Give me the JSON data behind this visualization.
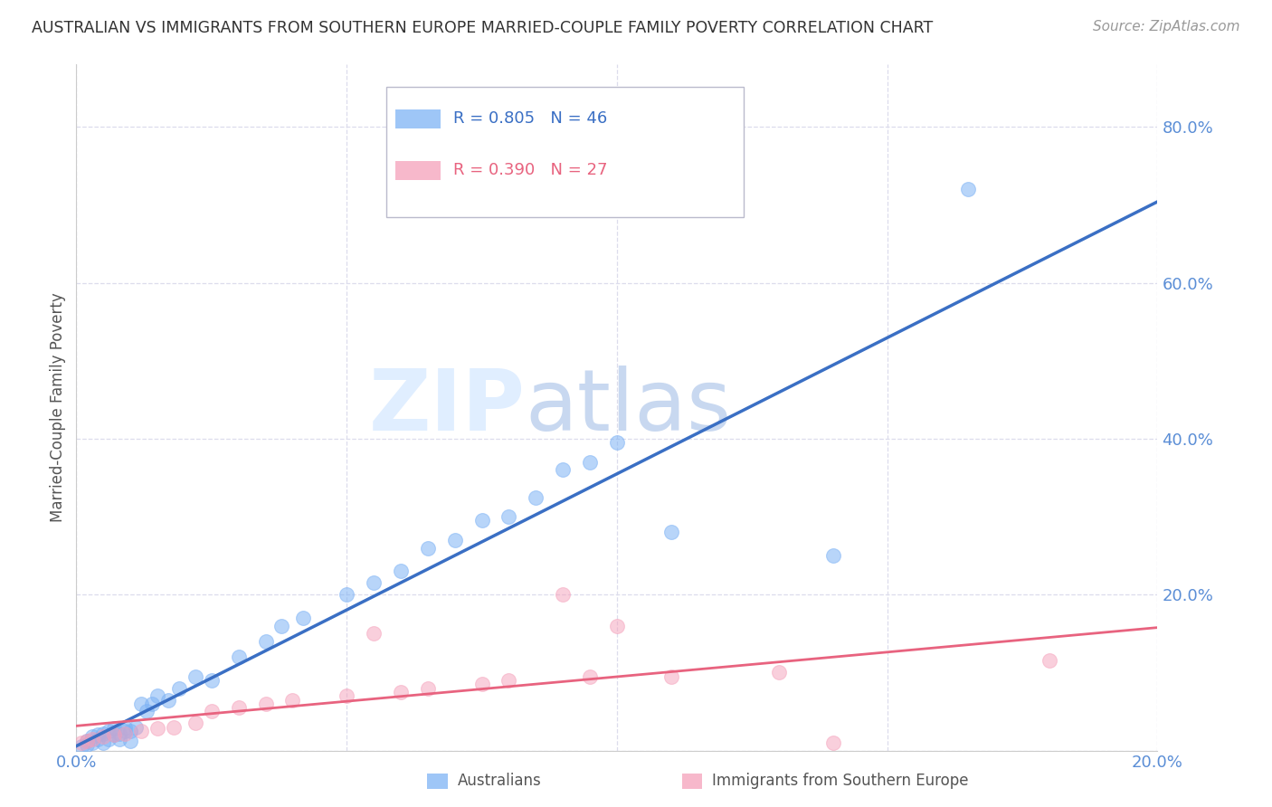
{
  "title": "AUSTRALIAN VS IMMIGRANTS FROM SOUTHERN EUROPE MARRIED-COUPLE FAMILY POVERTY CORRELATION CHART",
  "source": "Source: ZipAtlas.com",
  "ylabel": "Married-Couple Family Poverty",
  "watermark_zip": "ZIP",
  "watermark_atlas": "atlas",
  "xlim": [
    0.0,
    0.2
  ],
  "ylim": [
    0.0,
    0.88
  ],
  "yticks": [
    0.0,
    0.2,
    0.4,
    0.6,
    0.8
  ],
  "xticks": [
    0.0,
    0.05,
    0.1,
    0.15,
    0.2
  ],
  "xtick_labels": [
    "0.0%",
    "",
    "",
    "",
    "20.0%"
  ],
  "ytick_labels": [
    "",
    "20.0%",
    "40.0%",
    "60.0%",
    "80.0%"
  ],
  "blue_R": 0.805,
  "blue_N": 46,
  "pink_R": 0.39,
  "pink_N": 27,
  "blue_color": "#7EB3F5",
  "pink_color": "#F5A0BA",
  "blue_line_color": "#3A6FC4",
  "pink_line_color": "#E8637F",
  "blue_text_color": "#3A6FC4",
  "pink_text_color": "#E8637F",
  "legend_label_blue": "Australians",
  "legend_label_pink": "Immigrants from Southern Europe",
  "blue_x": [
    0.001,
    0.002,
    0.002,
    0.003,
    0.003,
    0.004,
    0.004,
    0.005,
    0.005,
    0.006,
    0.006,
    0.007,
    0.007,
    0.008,
    0.008,
    0.009,
    0.009,
    0.01,
    0.01,
    0.011,
    0.012,
    0.013,
    0.014,
    0.015,
    0.017,
    0.019,
    0.022,
    0.025,
    0.03,
    0.035,
    0.038,
    0.042,
    0.05,
    0.055,
    0.06,
    0.065,
    0.07,
    0.075,
    0.08,
    0.085,
    0.09,
    0.095,
    0.1,
    0.11,
    0.14,
    0.165
  ],
  "blue_y": [
    0.005,
    0.008,
    0.012,
    0.01,
    0.018,
    0.015,
    0.02,
    0.01,
    0.022,
    0.015,
    0.025,
    0.02,
    0.028,
    0.015,
    0.022,
    0.025,
    0.03,
    0.012,
    0.025,
    0.03,
    0.06,
    0.05,
    0.06,
    0.07,
    0.065,
    0.08,
    0.095,
    0.09,
    0.12,
    0.14,
    0.16,
    0.17,
    0.2,
    0.215,
    0.23,
    0.26,
    0.27,
    0.295,
    0.3,
    0.325,
    0.36,
    0.37,
    0.395,
    0.28,
    0.25,
    0.72
  ],
  "pink_x": [
    0.001,
    0.002,
    0.003,
    0.005,
    0.007,
    0.009,
    0.012,
    0.015,
    0.018,
    0.022,
    0.025,
    0.03,
    0.035,
    0.04,
    0.05,
    0.055,
    0.06,
    0.065,
    0.075,
    0.08,
    0.09,
    0.095,
    0.1,
    0.11,
    0.13,
    0.14,
    0.18
  ],
  "pink_y": [
    0.01,
    0.012,
    0.015,
    0.018,
    0.02,
    0.022,
    0.025,
    0.028,
    0.03,
    0.035,
    0.05,
    0.055,
    0.06,
    0.065,
    0.07,
    0.15,
    0.075,
    0.08,
    0.085,
    0.09,
    0.2,
    0.095,
    0.16,
    0.095,
    0.1,
    0.01,
    0.115
  ],
  "background_color": "#FFFFFF",
  "grid_color": "#DCDCEC",
  "title_color": "#333333",
  "axis_tick_color": "#5B8ED6",
  "watermark_color": "#E0EEFF"
}
